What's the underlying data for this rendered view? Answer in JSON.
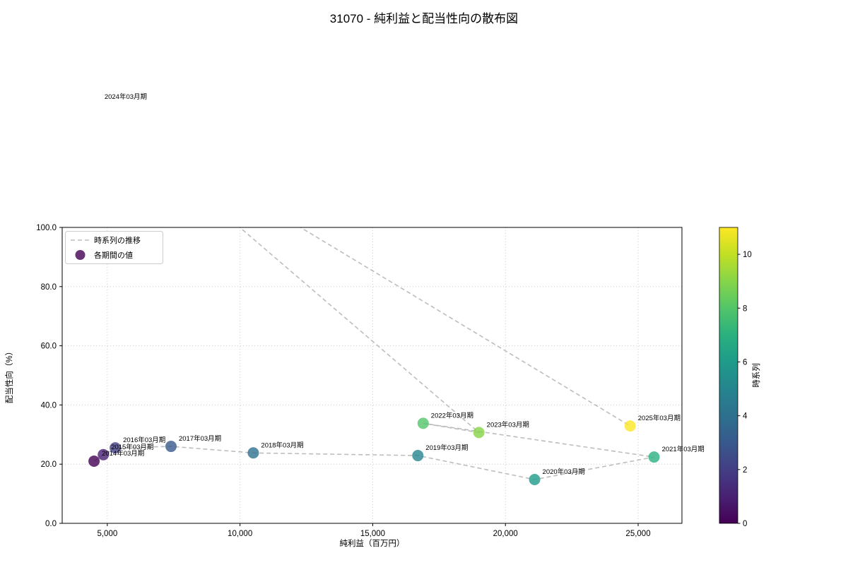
{
  "chart_data": {
    "type": "scatter",
    "title": "31070 - 純利益と配当性向の散布図",
    "xlabel": "純利益（百万円）",
    "ylabel": "配当性向（%）",
    "xlim": [
      3300,
      26650
    ],
    "ylim": [
      0,
      100
    ],
    "grid": true,
    "x_ticks": [
      {
        "value": 5000,
        "label": "5,000"
      },
      {
        "value": 10000,
        "label": "10,000"
      },
      {
        "value": 15000,
        "label": "15,000"
      },
      {
        "value": 20000,
        "label": "20,000"
      },
      {
        "value": 25000,
        "label": "25,000"
      }
    ],
    "y_ticks": [
      {
        "value": 0,
        "label": "0.0"
      },
      {
        "value": 20,
        "label": "20.0"
      },
      {
        "value": 40,
        "label": "40.0"
      },
      {
        "value": 60,
        "label": "60.0"
      },
      {
        "value": 80,
        "label": "80.0"
      },
      {
        "value": 100,
        "label": "100.0"
      }
    ],
    "legend": {
      "line_label": "時系列の推移",
      "marker_label": "各期間の値"
    },
    "trend_line": {
      "style": "dashed",
      "color": "#bdbdbd"
    },
    "points": [
      {
        "label": "2014年03月期",
        "x": 4500,
        "y": 21.0,
        "t": 0
      },
      {
        "label": "2015年03月期",
        "x": 4850,
        "y": 23.2,
        "t": 1
      },
      {
        "label": "2016年03月期",
        "x": 5300,
        "y": 25.5,
        "t": 2
      },
      {
        "label": "2017年03月期",
        "x": 7400,
        "y": 26.0,
        "t": 3
      },
      {
        "label": "2018年03月期",
        "x": 10500,
        "y": 23.8,
        "t": 4
      },
      {
        "label": "2019年03月期",
        "x": 16700,
        "y": 22.9,
        "t": 5
      },
      {
        "label": "2020年03月期",
        "x": 21100,
        "y": 14.8,
        "t": 6
      },
      {
        "label": "2021年03月期",
        "x": 25600,
        "y": 22.4,
        "t": 7
      },
      {
        "label": "2022年03月期",
        "x": 16900,
        "y": 33.8,
        "t": 8
      },
      {
        "label": "2023年03月期",
        "x": 19000,
        "y": 30.7,
        "t": 9
      },
      {
        "label": "2024年03月期",
        "x": 4600,
        "y": 141.5,
        "t": 10
      },
      {
        "label": "2025年03月期",
        "x": 24700,
        "y": 32.9,
        "t": 11
      }
    ],
    "colorbar": {
      "label": "時系列",
      "min": 0,
      "max": 11,
      "ticks": [
        0,
        2,
        4,
        6,
        8,
        10
      ],
      "colormap": "viridis",
      "colors": [
        "#440154",
        "#482173",
        "#433e85",
        "#38598c",
        "#2d708e",
        "#25858e",
        "#1e9b8a",
        "#2ab07f",
        "#52c569",
        "#86d549",
        "#c2df23",
        "#fde725"
      ]
    }
  }
}
